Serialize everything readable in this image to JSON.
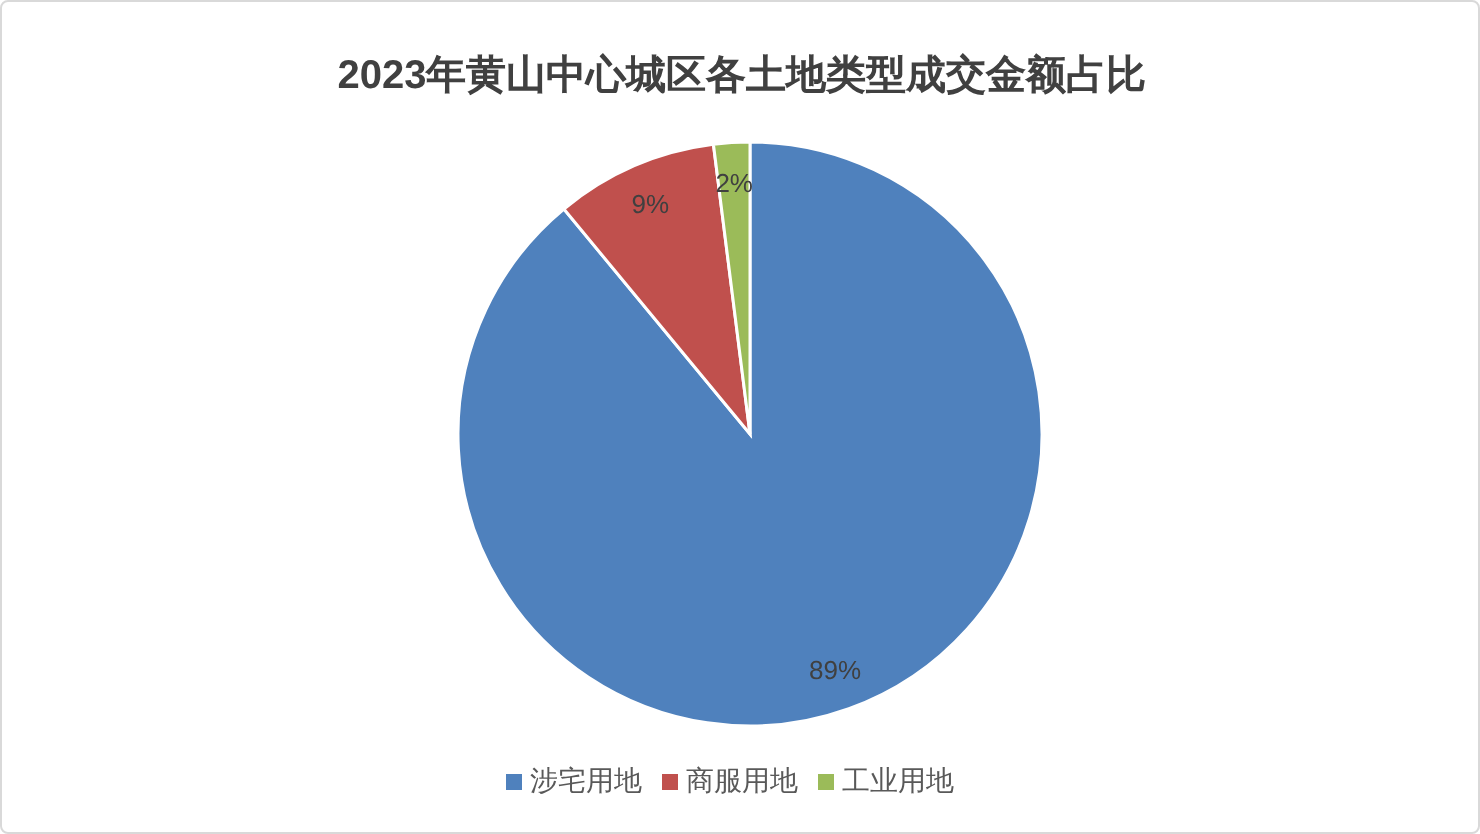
{
  "chart_data": {
    "type": "pie",
    "title": "2023年黄山中心城区各土地类型成交金额占比",
    "categories": [
      "涉宅用地",
      "商服用地",
      "工业用地"
    ],
    "values": [
      89,
      9,
      2
    ],
    "colors": [
      "#4f81bd",
      "#c0504d",
      "#9bbb59"
    ],
    "value_labels": [
      "89%",
      "9%",
      "2%"
    ],
    "legend": "bottom"
  }
}
